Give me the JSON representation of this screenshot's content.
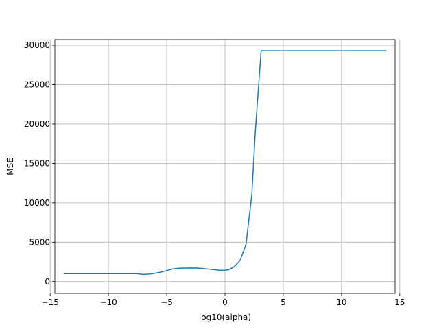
{
  "chart_data": {
    "type": "line",
    "title": "",
    "xlabel": "log10(alpha)",
    "ylabel": "MSE",
    "xlim": [
      -14.6,
      14.6
    ],
    "ylim": [
      -1500,
      30700
    ],
    "grid": true,
    "xticks": [
      -15,
      -10,
      -5,
      0,
      5,
      10,
      15
    ],
    "xtick_labels": [
      "−15",
      "−10",
      "−5",
      "0",
      "5",
      "10",
      "15"
    ],
    "yticks": [
      0,
      5000,
      10000,
      15000,
      20000,
      25000,
      30000
    ],
    "ytick_labels": [
      "0",
      "5000",
      "10000",
      "15000",
      "20000",
      "25000",
      "30000"
    ],
    "colors": {
      "line": "#1f77b4",
      "grid": "#b0b0b0"
    },
    "series": [
      {
        "x": [
          -13.8,
          -12,
          -10,
          -9,
          -8,
          -7.6,
          -7,
          -6.5,
          -6,
          -5.5,
          -5,
          -4.5,
          -4,
          -3.5,
          -3,
          -2.5,
          -2,
          -1.5,
          -1,
          -0.5,
          0,
          0.3,
          0.8,
          1.3,
          1.8,
          2.3,
          2.6,
          3.1,
          13.8
        ],
        "y": [
          1000,
          1000,
          1000,
          1000,
          1000,
          1000,
          900,
          950,
          1050,
          1200,
          1400,
          1600,
          1700,
          1720,
          1730,
          1720,
          1680,
          1600,
          1520,
          1450,
          1430,
          1500,
          1900,
          2700,
          4700,
          11000,
          19000,
          29300,
          29300
        ]
      }
    ]
  }
}
